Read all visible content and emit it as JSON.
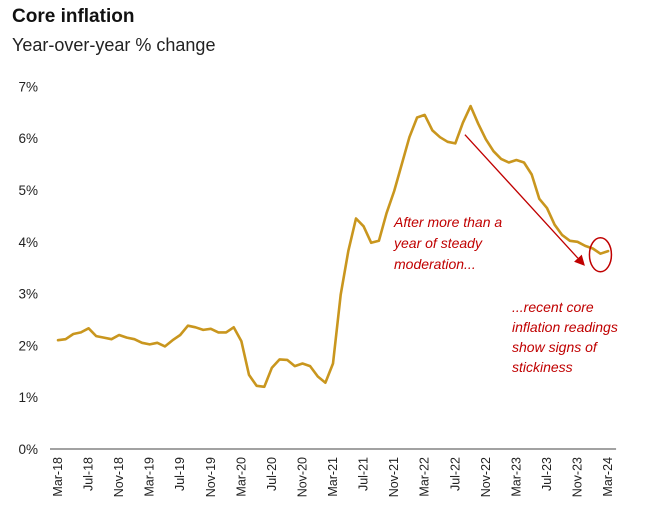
{
  "chart_data": {
    "type": "line",
    "title": "Core inflation",
    "subtitle": "Year-over-year % change",
    "xlabel": "",
    "ylabel": "",
    "ylim": [
      0,
      7
    ],
    "y_ticks": [
      "0%",
      "1%",
      "2%",
      "3%",
      "4%",
      "5%",
      "6%",
      "7%"
    ],
    "x_ticks": [
      "Mar-18",
      "Jul-18",
      "Nov-18",
      "Mar-19",
      "Jul-19",
      "Nov-19",
      "Mar-20",
      "Jul-20",
      "Nov-20",
      "Mar-21",
      "Jul-21",
      "Nov-21",
      "Mar-22",
      "Jul-22",
      "Nov-22",
      "Mar-23",
      "Jul-23",
      "Nov-23",
      "Mar-24"
    ],
    "grid": false,
    "line_color": "#c9961e",
    "annotation_color": "#c00000",
    "series": [
      {
        "x": [
          "Mar-18",
          "Apr-18",
          "May-18",
          "Jun-18",
          "Jul-18",
          "Aug-18",
          "Sep-18",
          "Oct-18",
          "Nov-18",
          "Dec-18",
          "Jan-19",
          "Feb-19",
          "Mar-19",
          "Apr-19",
          "May-19",
          "Jun-19",
          "Jul-19",
          "Aug-19",
          "Sep-19",
          "Oct-19",
          "Nov-19",
          "Dec-19",
          "Jan-20",
          "Feb-20",
          "Mar-20",
          "Apr-20",
          "May-20",
          "Jun-20",
          "Jul-20",
          "Aug-20",
          "Sep-20",
          "Oct-20",
          "Nov-20",
          "Dec-20",
          "Jan-21",
          "Feb-21",
          "Mar-21",
          "Apr-21",
          "May-21",
          "Jun-21",
          "Jul-21",
          "Aug-21",
          "Sep-21",
          "Oct-21",
          "Nov-21",
          "Dec-21",
          "Jan-22",
          "Feb-22",
          "Mar-22",
          "Apr-22",
          "May-22",
          "Jun-22",
          "Jul-22",
          "Aug-22",
          "Sep-22",
          "Oct-22",
          "Nov-22",
          "Dec-22",
          "Jan-23",
          "Feb-23",
          "Mar-23",
          "Apr-23",
          "May-23",
          "Jun-23",
          "Jul-23",
          "Aug-23",
          "Sep-23",
          "Oct-23",
          "Nov-23",
          "Dec-23",
          "Jan-24",
          "Feb-24",
          "Mar-24"
        ],
        "values": [
          2.1,
          2.12,
          2.22,
          2.25,
          2.33,
          2.18,
          2.15,
          2.12,
          2.2,
          2.15,
          2.12,
          2.05,
          2.02,
          2.05,
          1.98,
          2.1,
          2.2,
          2.38,
          2.35,
          2.3,
          2.32,
          2.25,
          2.25,
          2.35,
          2.08,
          1.43,
          1.22,
          1.2,
          1.57,
          1.73,
          1.72,
          1.6,
          1.65,
          1.6,
          1.4,
          1.28,
          1.65,
          2.98,
          3.82,
          4.45,
          4.3,
          3.98,
          4.02,
          4.55,
          4.98,
          5.5,
          6.02,
          6.4,
          6.45,
          6.15,
          6.02,
          5.93,
          5.9,
          6.3,
          6.62,
          6.28,
          5.98,
          5.75,
          5.6,
          5.53,
          5.58,
          5.53,
          5.3,
          4.83,
          4.65,
          4.33,
          4.13,
          4.02,
          4.0,
          3.92,
          3.87,
          3.77,
          3.82
        ]
      }
    ],
    "annotations": [
      {
        "lines": [
          "After more than a",
          "year of steady",
          "moderation..."
        ]
      },
      {
        "lines": [
          "...recent core",
          "inflation readings",
          "show signs of",
          "stickiness"
        ]
      }
    ]
  }
}
